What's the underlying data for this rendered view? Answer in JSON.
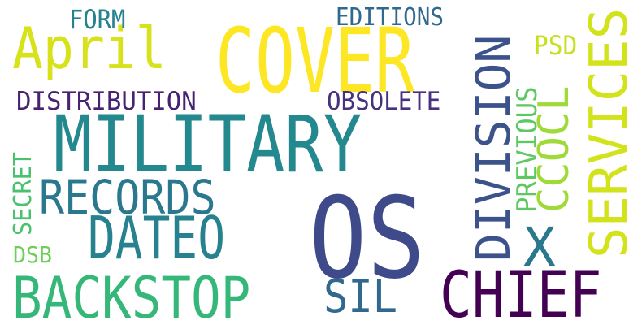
{
  "words": [
    {
      "text": "MILITARY",
      "color": "#23898e"
    },
    {
      "text": "OS",
      "color": "#3e4a89"
    },
    {
      "text": "COVER",
      "color": "#fde725"
    },
    {
      "text": "BACKSTOP",
      "color": "#35b779"
    },
    {
      "text": "CHIEF",
      "color": "#440154"
    },
    {
      "text": "DATEO",
      "color": "#26828e"
    },
    {
      "text": "April",
      "color": "#d8e219"
    },
    {
      "text": "RECORDS",
      "color": "#2a788e"
    },
    {
      "text": "SERVICES",
      "color": "#d2e21b"
    },
    {
      "text": "DIVISION",
      "color": "#3b528b"
    },
    {
      "text": "CCOCL",
      "color": "#a0da39"
    },
    {
      "text": "SIL",
      "color": "#31688e"
    },
    {
      "text": "X",
      "color": "#2a788e"
    },
    {
      "text": "DISTRIBUTION",
      "color": "#482173"
    },
    {
      "text": "OBSOLETE",
      "color": "#46327e"
    },
    {
      "text": "PREVIOUS",
      "color": "#5ec962"
    },
    {
      "text": "FORM",
      "color": "#26828e"
    },
    {
      "text": "EDITIONS",
      "color": "#31688e"
    },
    {
      "text": "SECRET",
      "color": "#4ac16d"
    },
    {
      "text": "PSD",
      "color": "#c8e020"
    },
    {
      "text": "DSB",
      "color": "#6ece58"
    }
  ]
}
